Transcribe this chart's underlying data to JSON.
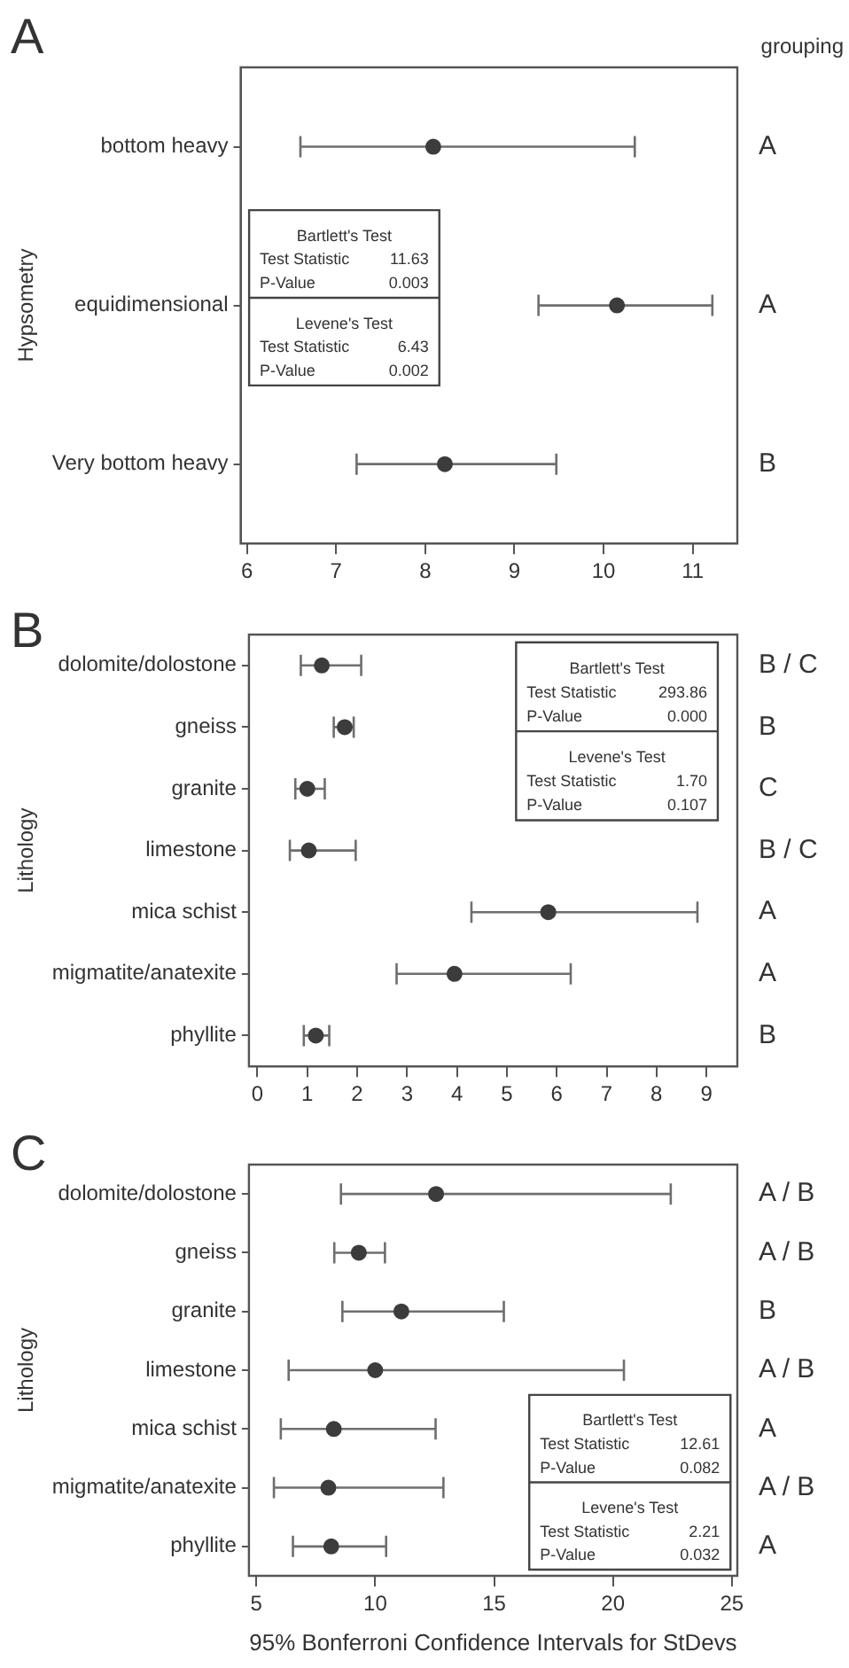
{
  "chart_data": [
    {
      "type": "scatter",
      "orientation": "horizontal",
      "ylabel": "Hypsometry",
      "categories": [
        "bottom heavy",
        "equidimensional",
        "Very bottom heavy"
      ],
      "values": [
        8.09,
        10.15,
        8.22
      ],
      "errors": [
        [
          6.6,
          10.35
        ],
        [
          9.27,
          11.22
        ],
        [
          7.23,
          9.47
        ]
      ],
      "color": "#3c3c3c",
      "xlim": [
        5.93,
        11.5
      ],
      "xticks": [
        6,
        7,
        8,
        9,
        10,
        11
      ],
      "marker": "circle",
      "annotations": [
        "A",
        "grouping",
        "Bartlett's Test",
        "Test Statistic 11.63",
        "P-Value 0.003",
        "Levene's Test",
        "Test Statistic 6.43",
        "P-Value 0.002",
        "A",
        "A",
        "B"
      ]
    },
    {
      "type": "scatter",
      "orientation": "horizontal",
      "ylabel": "Lithology",
      "categories": [
        "dolomite/dolostone",
        "gneiss",
        "granite",
        "limestone",
        "mica schist",
        "migmatite/anatexite",
        "phyllite"
      ],
      "values": [
        1.29,
        1.75,
        1.0,
        1.03,
        5.83,
        3.95,
        1.17
      ],
      "errors": [
        [
          0.87,
          2.08
        ],
        [
          1.53,
          1.93
        ],
        [
          0.76,
          1.35
        ],
        [
          0.65,
          1.97
        ],
        [
          4.29,
          8.82
        ],
        [
          2.79,
          6.28
        ],
        [
          0.93,
          1.44
        ]
      ],
      "color": "#3c3c3c",
      "xlim": [
        -0.17,
        9.62
      ],
      "xticks": [
        0,
        1,
        2,
        3,
        4,
        5,
        6,
        7,
        8,
        9
      ],
      "marker": "circle",
      "annotations": [
        "B",
        "Bartlett's Test",
        "Test Statistic 293.86",
        "P-Value 0.000",
        "Levene's Test",
        "Test Statistic 1.70",
        "P-Value 0.107",
        "B / C",
        "B",
        "C",
        "B / C",
        "A",
        "A",
        "B"
      ]
    },
    {
      "type": "scatter",
      "orientation": "horizontal",
      "ylabel": "Lithology",
      "xlabel": "95% Bonferroni Confidence Intervals for StDevs",
      "categories": [
        "dolomite/dolostone",
        "gneiss",
        "granite",
        "limestone",
        "mica schist",
        "migmatite/anatexite",
        "phyllite"
      ],
      "values": [
        12.56,
        9.31,
        11.1,
        10.0,
        8.26,
        8.03,
        8.15
      ],
      "errors": [
        [
          8.56,
          22.43
        ],
        [
          8.28,
          10.41
        ],
        [
          8.62,
          15.41
        ],
        [
          6.36,
          20.46
        ],
        [
          6.03,
          12.54
        ],
        [
          5.74,
          12.87
        ],
        [
          6.54,
          10.46
        ]
      ],
      "color": "#3c3c3c",
      "xlim": [
        4.69,
        25.23
      ],
      "xticks": [
        5,
        10,
        15,
        20,
        25
      ],
      "marker": "circle",
      "annotations": [
        "C",
        "Bartlett's Test",
        "Test Statistic 12.61",
        "P-Value 0.082",
        "Levene's Test",
        "Test Statistic 2.21",
        "P-Value 0.032",
        "A / B",
        "A / B",
        "B",
        "A / B",
        "A",
        "A / B",
        "A"
      ]
    }
  ]
}
